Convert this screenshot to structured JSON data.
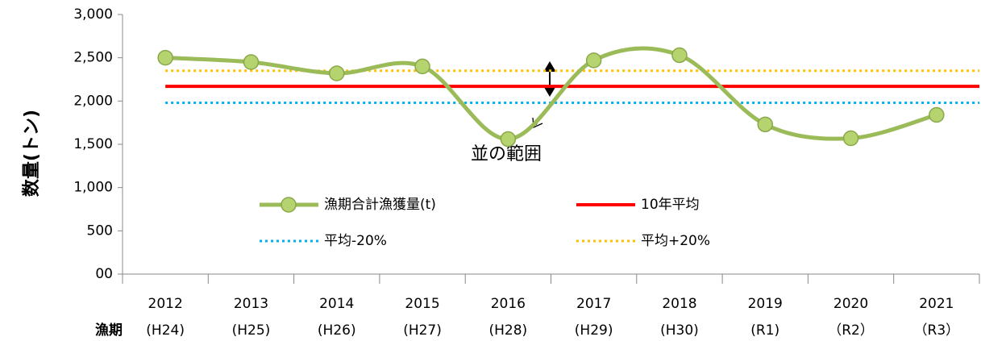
{
  "chart_data": {
    "type": "line",
    "categories": [
      "2012",
      "2013",
      "2014",
      "2015",
      "2016",
      "2017",
      "2018",
      "2019",
      "2020",
      "2021"
    ],
    "sublabels": [
      "(H24)",
      "(H25)",
      "(H26)",
      "(H27)",
      "(H28)",
      "(H29)",
      "(H30)",
      "(R1)",
      "（R2）",
      "（R3）"
    ],
    "series": [
      {
        "name": "漁期合計漁獲量(t)",
        "color": "#9bbb59",
        "values": [
          2500,
          2450,
          2320,
          2400,
          1560,
          2470,
          2530,
          1730,
          1570,
          1840
        ]
      }
    ],
    "reference_lines": [
      {
        "name": "10年平均",
        "color": "#ff0000",
        "value": 2170,
        "style": "solid"
      },
      {
        "name": "平均-20%",
        "color": "#00b0f0",
        "value": 1980,
        "style": "dotted"
      },
      {
        "name": "平均+20%",
        "color": "#ffc000",
        "value": 2350,
        "style": "dotted"
      }
    ],
    "ylim": [
      0,
      3000
    ],
    "yticks": [
      {
        "value": 0,
        "label": "00"
      },
      500,
      {
        "value": 1000,
        "label": "1,000"
      },
      {
        "value": 1500,
        "label": "1,500"
      },
      {
        "value": 2000,
        "label": "2,000"
      },
      {
        "value": 2500,
        "label": "2,500"
      },
      {
        "value": 3000,
        "label": "3,000"
      }
    ],
    "ylabel": "数量(トン)",
    "xlabel": "漁期",
    "annotation": "並の範囲",
    "smooth": true
  }
}
